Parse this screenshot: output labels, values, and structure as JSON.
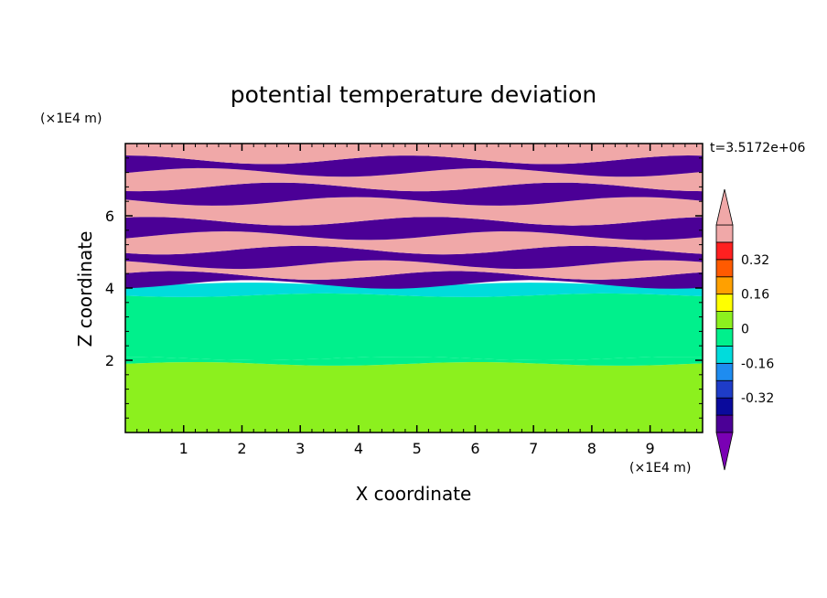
{
  "chart_data": {
    "type": "heatmap",
    "title": "potential temperature deviation",
    "time_label": "t=3.5172e+06",
    "xlabel": "X coordinate",
    "ylabel": "Z coordinate",
    "x_unit": "(×1E4 m)",
    "y_unit": "(×1E4 m)",
    "xlim": [
      0,
      9.9
    ],
    "ylim": [
      0,
      8
    ],
    "x_ticks": [
      1,
      2,
      3,
      4,
      5,
      6,
      7,
      8,
      9
    ],
    "y_ticks": [
      2,
      4,
      6
    ],
    "colorbar": {
      "levels": [
        -0.48,
        -0.4,
        -0.32,
        -0.24,
        -0.16,
        -0.08,
        0,
        0.08,
        0.16,
        0.24,
        0.32,
        0.4,
        0.48
      ],
      "colors": [
        "#7a00b4",
        "#4b0096",
        "#0a0a9c",
        "#1e3cc8",
        "#1e8cf0",
        "#00dcdc",
        "#00f08c",
        "#8cf01e",
        "#ffff00",
        "#ffa000",
        "#ff5a00",
        "#ff2020",
        "#f0a8a8",
        "#f0a8a8"
      ],
      "tick_labels": [
        "0.32",
        "0.16",
        "0",
        "-0.16",
        "-0.32"
      ],
      "tick_values": [
        0.32,
        0.16,
        0,
        -0.16,
        -0.32
      ],
      "extend": "both"
    },
    "field_bands": [
      {
        "z0": 0.0,
        "z1": 1.9,
        "value": 0.04
      },
      {
        "z0": 1.9,
        "z1": 2.05,
        "value": -0.04
      },
      {
        "z0": 2.05,
        "z1": 3.8,
        "value": -0.04
      },
      {
        "z0": 3.8,
        "z1": 4.1,
        "value": -0.1
      },
      {
        "z0": 4.1,
        "z1": 4.35,
        "value": -0.44
      },
      {
        "z0": 4.35,
        "z1": 4.65,
        "value": 0.44
      },
      {
        "z0": 4.65,
        "z1": 5.05,
        "value": -0.44
      },
      {
        "z0": 5.05,
        "z1": 5.45,
        "value": 0.44
      },
      {
        "z0": 5.45,
        "z1": 5.85,
        "value": -0.44
      },
      {
        "z0": 5.85,
        "z1": 6.4,
        "value": 0.44
      },
      {
        "z0": 6.4,
        "z1": 6.8,
        "value": -0.44
      },
      {
        "z0": 6.8,
        "z1": 7.2,
        "value": 0.44
      },
      {
        "z0": 7.2,
        "z1": 7.55,
        "value": -0.44
      },
      {
        "z0": 7.55,
        "z1": 8.0,
        "value": 0.44
      }
    ]
  }
}
